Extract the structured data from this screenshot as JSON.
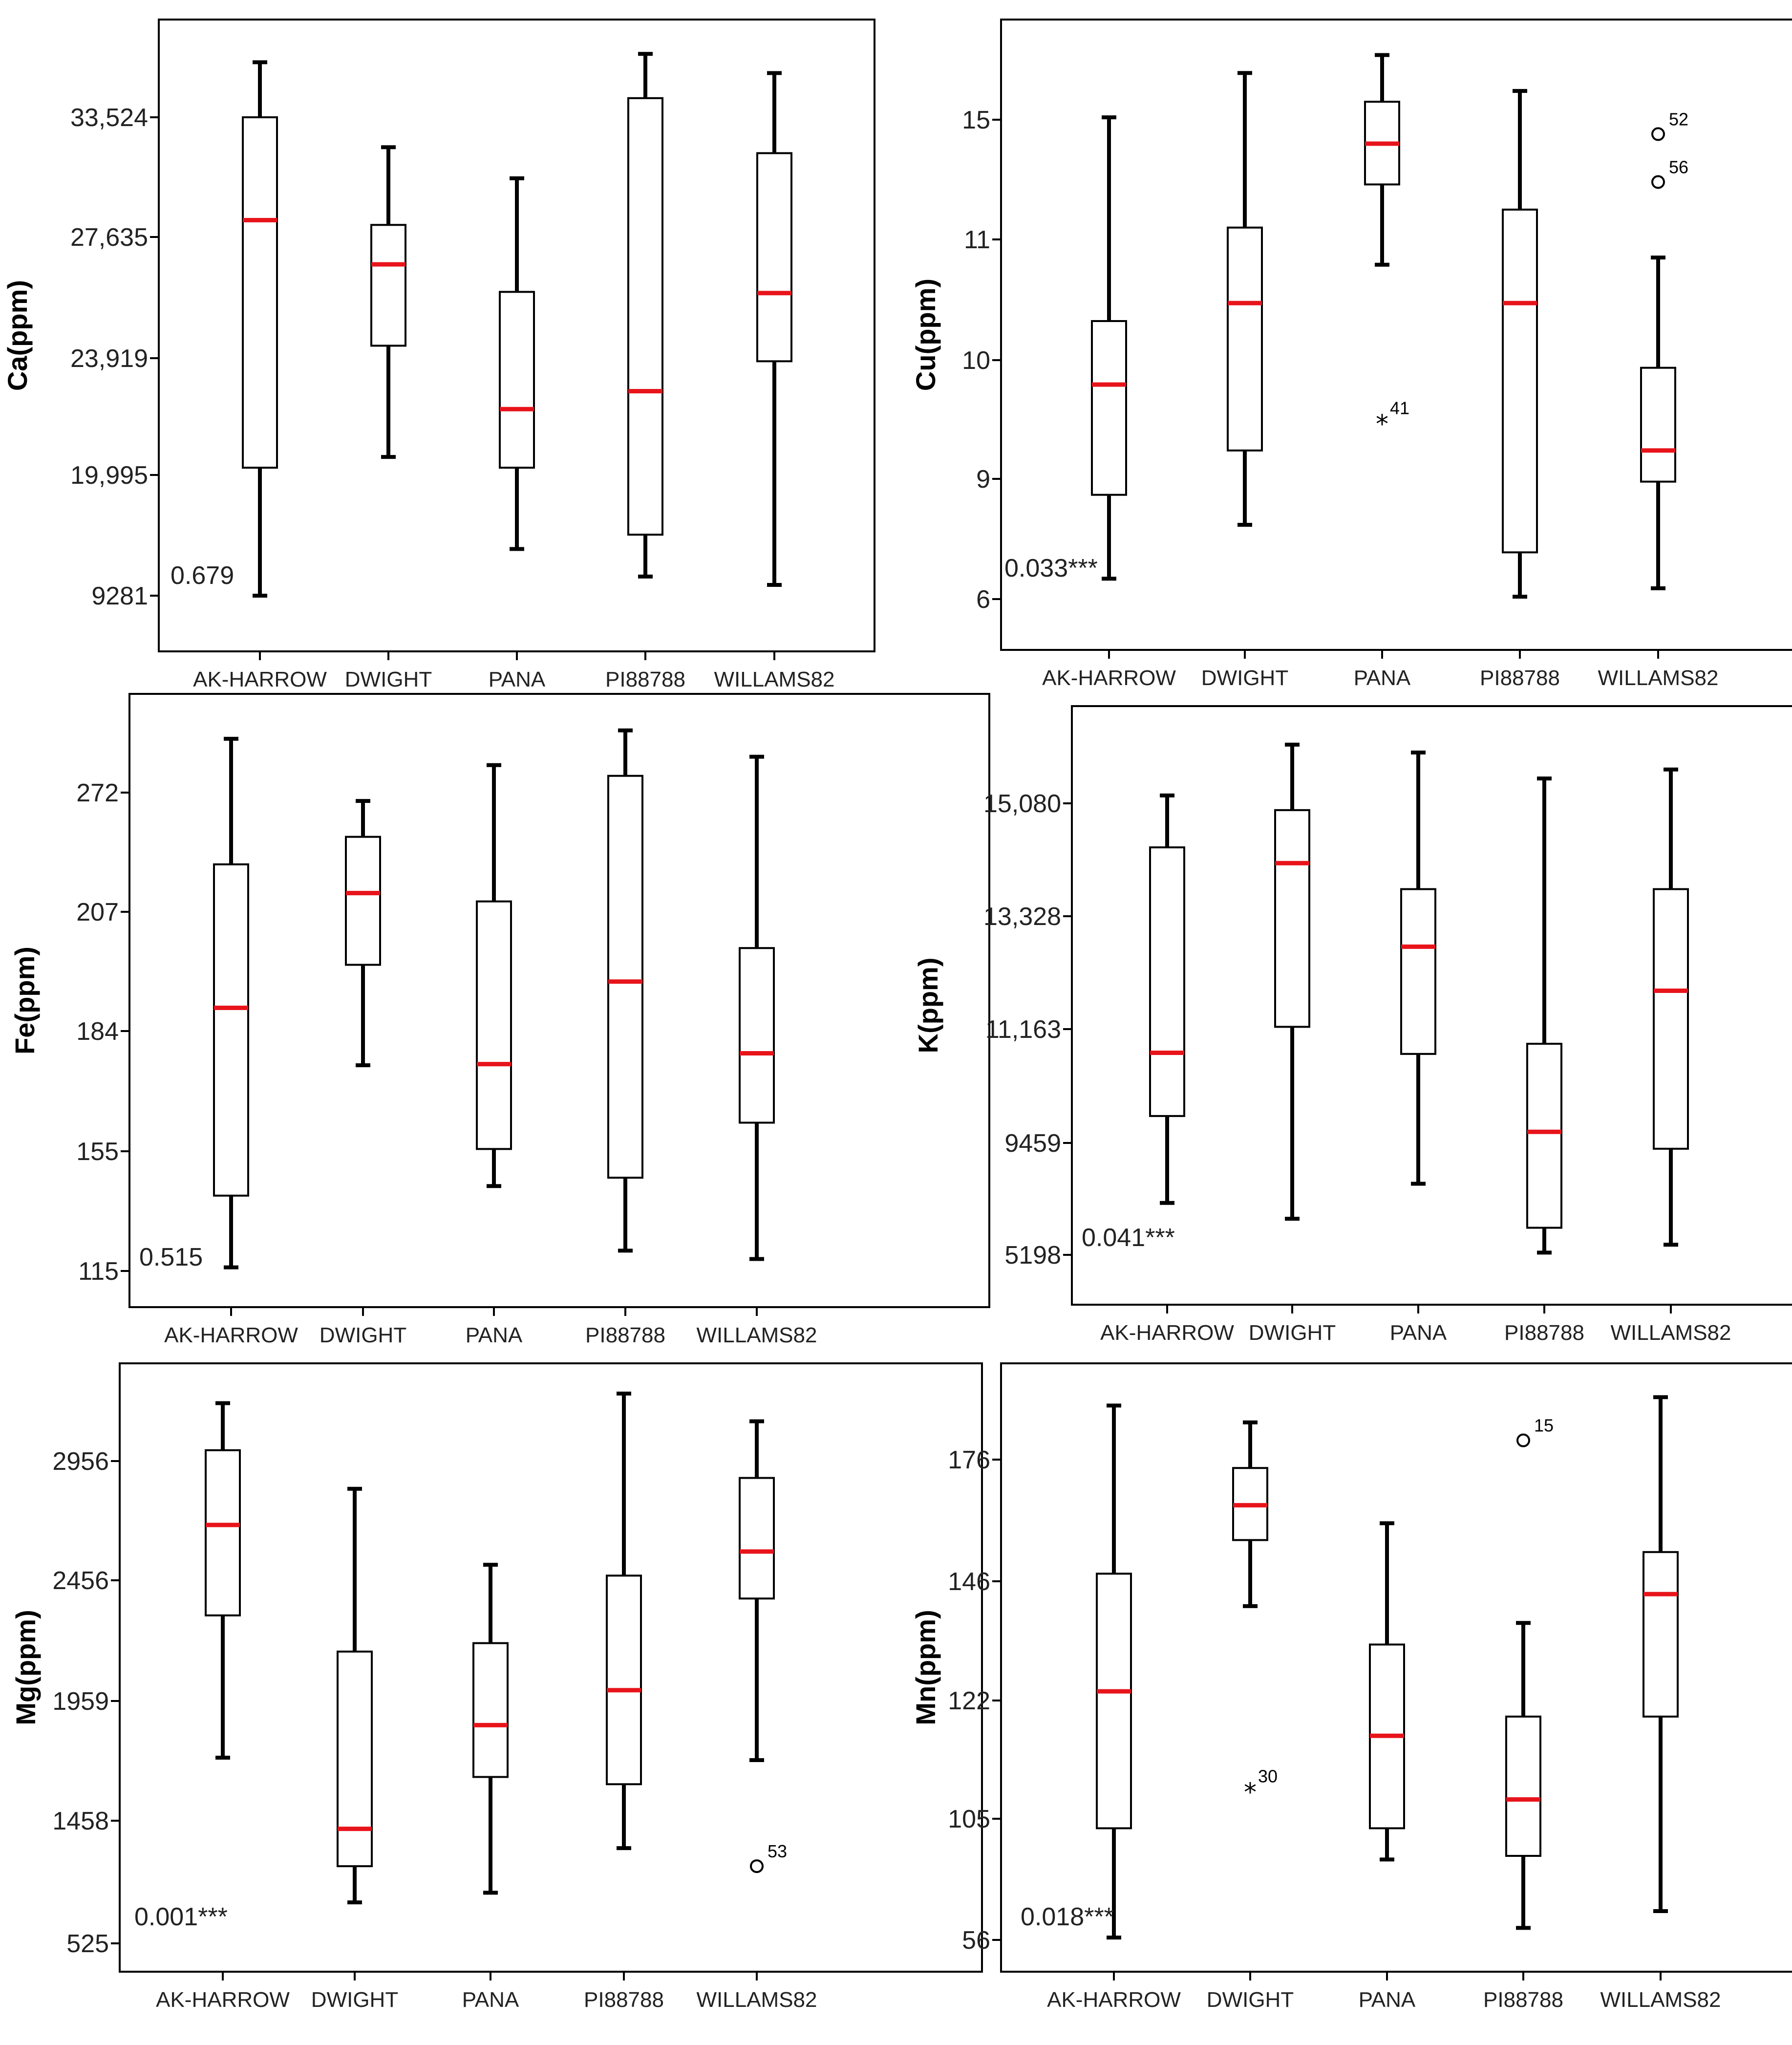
{
  "chart_data": [
    {
      "type": "boxplot",
      "ylabel": "Ca(ppm)",
      "yticks": [
        "9281",
        "19,995",
        "23,919",
        "27,635",
        "33,524"
      ],
      "categories": [
        "AK-HARROW",
        "DWIGHT",
        "PANA",
        "PI88788",
        "WILLAMS82"
      ],
      "p_value": "0.679",
      "boxes": [
        {
          "min": 0.0,
          "q1": 1.07,
          "median": 3.14,
          "q3": 4.0,
          "max": 4.46
        },
        {
          "min": 1.16,
          "q1": 2.09,
          "median": 2.77,
          "q3": 3.1,
          "max": 3.75
        },
        {
          "min": 0.39,
          "q1": 1.07,
          "median": 1.56,
          "q3": 2.54,
          "max": 3.49
        },
        {
          "min": 0.16,
          "q1": 0.51,
          "median": 1.71,
          "q3": 4.16,
          "max": 4.53
        },
        {
          "min": 0.09,
          "q1": 1.96,
          "median": 2.53,
          "q3": 3.7,
          "max": 4.37
        }
      ],
      "outliers": [],
      "extremes": []
    },
    {
      "type": "boxplot",
      "ylabel": "Cu(ppm)",
      "yticks": [
        "6",
        "9",
        "10",
        "11",
        "15"
      ],
      "categories": [
        "AK-HARROW",
        "DWIGHT",
        "PANA",
        "PI88788",
        "WILLAMS82"
      ],
      "p_value": "0.033***",
      "boxes": [
        {
          "min": 0.17,
          "q1": 0.87,
          "median": 1.79,
          "q3": 2.32,
          "max": 4.02
        },
        {
          "min": 0.62,
          "q1": 1.24,
          "median": 2.47,
          "q3": 3.1,
          "max": 4.39
        },
        {
          "min": 2.79,
          "q1": 3.46,
          "median": 3.8,
          "q3": 4.15,
          "max": 4.54
        },
        {
          "min": 0.02,
          "q1": 0.39,
          "median": 2.47,
          "q3": 3.25,
          "max": 4.24
        },
        {
          "min": 0.09,
          "q1": 0.98,
          "median": 1.24,
          "q3": 1.93,
          "max": 2.85
        }
      ],
      "outliers": [
        {
          "category": "WILLAMS82",
          "value": 3.88,
          "label": "52"
        },
        {
          "category": "WILLAMS82",
          "value": 3.48,
          "label": "56"
        }
      ],
      "extremes": [
        {
          "category": "PANA",
          "value": 1.47,
          "label": "41"
        }
      ]
    },
    {
      "type": "boxplot",
      "ylabel": "Fe(ppm)",
      "yticks": [
        "115",
        "155",
        "184",
        "207",
        "272"
      ],
      "categories": [
        "AK-HARROW",
        "DWIGHT",
        "PANA",
        "PI88788",
        "WILLAMS82"
      ],
      "p_value": "0.515",
      "boxes": [
        {
          "min": 0.03,
          "q1": 0.63,
          "median": 2.2,
          "q3": 3.4,
          "max": 4.45
        },
        {
          "min": 1.72,
          "q1": 2.56,
          "median": 3.16,
          "q3": 3.63,
          "max": 3.93
        },
        {
          "min": 0.71,
          "q1": 1.02,
          "median": 1.73,
          "q3": 3.09,
          "max": 4.23
        },
        {
          "min": 0.17,
          "q1": 0.78,
          "median": 2.42,
          "q3": 4.14,
          "max": 4.52
        },
        {
          "min": 0.1,
          "q1": 1.24,
          "median": 1.82,
          "q3": 2.7,
          "max": 4.3
        }
      ],
      "outliers": [],
      "extremes": []
    },
    {
      "type": "boxplot",
      "ylabel": "K(ppm)",
      "yticks": [
        "5198",
        "9459",
        "11,163",
        "13,328",
        "15,080"
      ],
      "categories": [
        "AK-HARROW",
        "DWIGHT",
        "PANA",
        "PI88788",
        "WILLAMS82"
      ],
      "p_value": "0.041***",
      "boxes": [
        {
          "min": 0.46,
          "q1": 1.23,
          "median": 1.79,
          "q3": 3.61,
          "max": 4.07
        },
        {
          "min": 0.32,
          "q1": 2.02,
          "median": 3.47,
          "q3": 3.94,
          "max": 4.52
        },
        {
          "min": 0.63,
          "q1": 1.78,
          "median": 2.73,
          "q3": 3.24,
          "max": 4.45
        },
        {
          "min": 0.02,
          "q1": 0.24,
          "median": 1.09,
          "q3": 1.87,
          "max": 4.22
        },
        {
          "min": 0.09,
          "q1": 0.94,
          "median": 2.34,
          "q3": 3.24,
          "max": 4.3
        }
      ],
      "outliers": [],
      "extremes": []
    },
    {
      "type": "boxplot",
      "ylabel": "Mg(ppm)",
      "yticks": [
        "525",
        "1458",
        "1959",
        "2456",
        "2956"
      ],
      "categories": [
        "AK-HARROW",
        "DWIGHT",
        "PANA",
        "PI88788",
        "WILLAMS82"
      ],
      "p_value": "0.001***",
      "boxes": [
        {
          "min": 1.54,
          "q1": 2.72,
          "median": 3.47,
          "q3": 4.09,
          "max": 4.48
        },
        {
          "min": 0.34,
          "q1": 0.64,
          "median": 0.95,
          "q3": 2.42,
          "max": 3.77
        },
        {
          "min": 0.42,
          "q1": 1.38,
          "median": 1.81,
          "q3": 2.49,
          "max": 3.14
        },
        {
          "min": 0.79,
          "q1": 1.32,
          "median": 2.1,
          "q3": 3.05,
          "max": 4.56
        },
        {
          "min": 1.52,
          "q1": 2.86,
          "median": 3.25,
          "q3": 3.86,
          "max": 4.33
        }
      ],
      "outliers": [
        {
          "category": "WILLAMS82",
          "value": 0.64,
          "label": "53"
        }
      ],
      "extremes": []
    },
    {
      "type": "boxplot",
      "ylabel": "Mn(ppm)",
      "yticks": [
        "56",
        "105",
        "122",
        "146",
        "176"
      ],
      "categories": [
        "AK-HARROW",
        "DWIGHT",
        "PANA",
        "PI88788",
        "WILLAMS82"
      ],
      "p_value": "0.018***",
      "boxes": [
        {
          "min": 0.02,
          "q1": 0.93,
          "median": 2.07,
          "q3": 3.05,
          "max": 4.45
        },
        {
          "min": 2.78,
          "q1": 3.33,
          "median": 3.62,
          "q3": 3.93,
          "max": 4.31
        },
        {
          "min": 0.67,
          "q1": 0.93,
          "median": 1.7,
          "q3": 2.46,
          "max": 3.47
        },
        {
          "min": 0.1,
          "q1": 0.7,
          "median": 1.17,
          "q3": 1.86,
          "max": 2.64
        },
        {
          "min": 0.24,
          "q1": 1.86,
          "median": 2.88,
          "q3": 3.23,
          "max": 4.52
        }
      ],
      "outliers": [
        {
          "category": "PI88788",
          "value": 4.16,
          "label": "15"
        }
      ],
      "extremes": [
        {
          "category": "DWIGHT",
          "value": 1.24,
          "label": "30"
        }
      ]
    }
  ]
}
